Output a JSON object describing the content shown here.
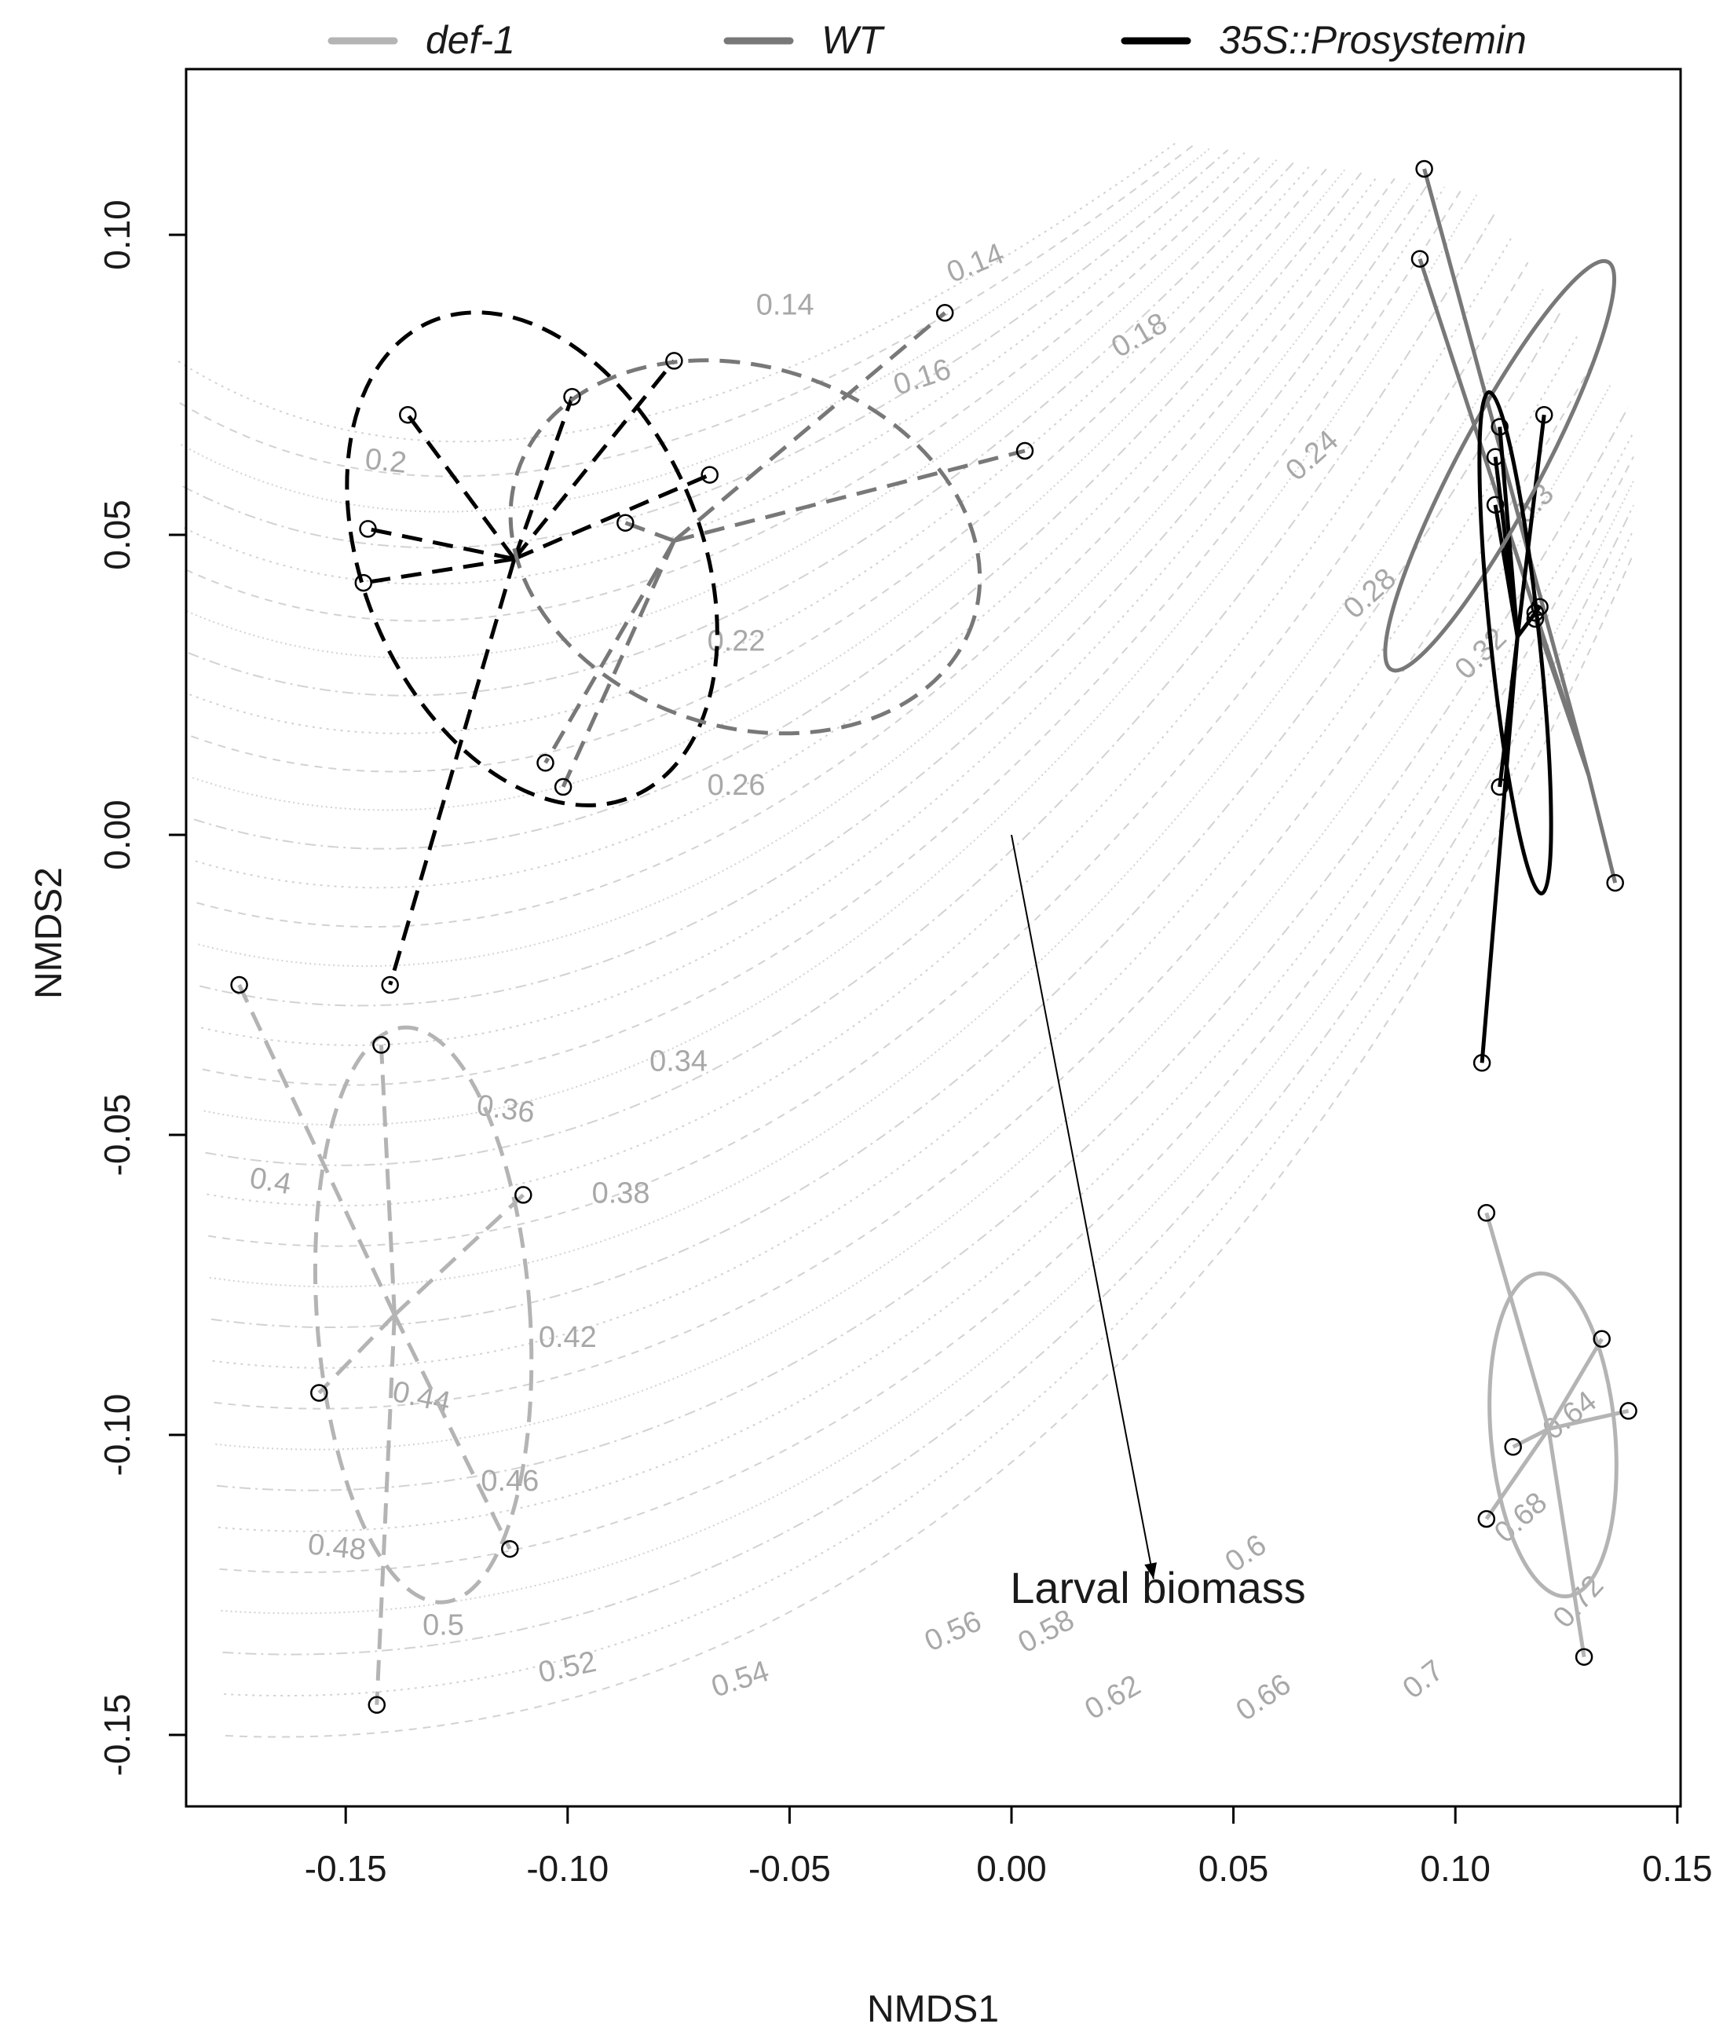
{
  "chart_data": {
    "type": "scatter",
    "title": "",
    "xlabel": "NMDS1",
    "ylabel": "NMDS2",
    "xlim": [
      -0.185,
      0.15
    ],
    "ylim": [
      -0.162,
      0.128
    ],
    "x_ticks": [
      "-0.15",
      "-0.10",
      "-0.05",
      "0.00",
      "0.05",
      "0.10",
      "0.15"
    ],
    "x_tick_values": [
      -0.15,
      -0.1,
      -0.05,
      0.0,
      0.05,
      0.1,
      0.15
    ],
    "y_ticks": [
      "-0.15",
      "-0.10",
      "-0.05",
      "0.00",
      "0.05",
      "0.10"
    ],
    "y_tick_values": [
      -0.15,
      -0.1,
      -0.05,
      0.0,
      0.05,
      0.1
    ],
    "grid": false,
    "legend_position": "top",
    "legend": [
      {
        "name": "def-1",
        "color": "#b4b4b4"
      },
      {
        "name": "WT",
        "color": "#787878"
      },
      {
        "name": "35S::Prosystemin",
        "color": "#000000"
      }
    ],
    "groups": [
      {
        "series": "35S::Prosystemin",
        "color": "#000000",
        "dash": true,
        "centroid": [
          -0.112,
          0.046
        ],
        "points": [
          [
            -0.136,
            0.07
          ],
          [
            -0.145,
            0.051
          ],
          [
            -0.146,
            0.042
          ],
          [
            -0.099,
            0.073
          ],
          [
            -0.076,
            0.079
          ],
          [
            -0.068,
            0.06
          ],
          [
            -0.14,
            -0.025
          ]
        ],
        "ellipse": {
          "cx": -0.108,
          "cy": 0.046,
          "rx": 0.038,
          "ry": 0.043,
          "angle_deg": 23
        }
      },
      {
        "series": "WT",
        "color": "#787878",
        "dash": true,
        "centroid": [
          -0.076,
          0.049
        ],
        "points": [
          [
            -0.015,
            0.087
          ],
          [
            0.003,
            0.064
          ],
          [
            -0.087,
            0.052
          ],
          [
            -0.105,
            0.012
          ],
          [
            -0.101,
            0.008
          ]
        ],
        "ellipse": {
          "cx": -0.06,
          "cy": 0.048,
          "rx": 0.054,
          "ry": 0.03,
          "angle_deg": -18
        }
      },
      {
        "series": "def-1",
        "color": "#b4b4b4",
        "dash": true,
        "centroid": [
          -0.139,
          -0.08
        ],
        "points": [
          [
            -0.174,
            -0.025
          ],
          [
            -0.142,
            -0.035
          ],
          [
            -0.11,
            -0.06
          ],
          [
            -0.156,
            -0.093
          ],
          [
            -0.113,
            -0.119
          ],
          [
            -0.143,
            -0.145
          ]
        ],
        "ellipse": {
          "cx": -0.1325,
          "cy": -0.08,
          "rx": 0.024,
          "ry": 0.048,
          "angle_deg": 4
        }
      },
      {
        "series": "WT",
        "color": "#787878",
        "dash": false,
        "centroid": [
          0.13,
          0.01
        ],
        "points": [
          [
            0.093,
            0.111
          ],
          [
            0.092,
            0.096
          ],
          [
            0.118,
            0.037
          ],
          [
            0.118,
            0.036
          ],
          [
            0.136,
            -0.008
          ]
        ],
        "ellipse": {
          "cx": 0.11,
          "cy": 0.0615,
          "rx": 0.052,
          "ry": 0.007,
          "angle_deg": 62
        }
      },
      {
        "series": "35S::Prosystemin",
        "color": "#000000",
        "dash": false,
        "centroid": [
          0.114,
          0.033
        ],
        "points": [
          [
            0.11,
            0.068
          ],
          [
            0.109,
            0.063
          ],
          [
            0.12,
            0.07
          ],
          [
            0.109,
            0.055
          ],
          [
            0.119,
            0.038
          ],
          [
            0.11,
            0.008
          ],
          [
            0.106,
            -0.038
          ]
        ],
        "ellipse": {
          "cx": 0.1135,
          "cy": 0.032,
          "rx": 0.0055,
          "ry": 0.042,
          "angle_deg": 6
        }
      },
      {
        "series": "def-1",
        "color": "#b4b4b4",
        "dash": false,
        "centroid": [
          0.121,
          -0.099
        ],
        "points": [
          [
            0.107,
            -0.063
          ],
          [
            0.133,
            -0.084
          ],
          [
            0.139,
            -0.096
          ],
          [
            0.113,
            -0.102
          ],
          [
            0.107,
            -0.114
          ],
          [
            0.129,
            -0.137
          ]
        ],
        "ellipse": {
          "cx": 0.122,
          "cy": -0.1,
          "rx": 0.014,
          "ry": 0.027,
          "angle_deg": 5
        }
      }
    ],
    "contour_labels": [
      {
        "text": "0.14",
        "x": -0.051,
        "y": 0.088,
        "angle": 0
      },
      {
        "text": "0.14",
        "x": -0.008,
        "y": 0.095,
        "angle": -22
      },
      {
        "text": "0.16",
        "x": -0.02,
        "y": 0.076,
        "angle": -18
      },
      {
        "text": "0.18",
        "x": 0.029,
        "y": 0.083,
        "angle": -30
      },
      {
        "text": "0.2",
        "x": -0.141,
        "y": 0.062,
        "angle": 6
      },
      {
        "text": "0.22",
        "x": -0.062,
        "y": 0.032,
        "angle": 0
      },
      {
        "text": "0.24",
        "x": 0.068,
        "y": 0.063,
        "angle": -42
      },
      {
        "text": "0.26",
        "x": -0.062,
        "y": 0.008,
        "angle": 0
      },
      {
        "text": "0.28",
        "x": 0.081,
        "y": 0.04,
        "angle": -42
      },
      {
        "text": "0.3",
        "x": 0.118,
        "y": 0.055,
        "angle": -45
      },
      {
        "text": "0.32",
        "x": 0.106,
        "y": 0.03,
        "angle": -45
      },
      {
        "text": "0.34",
        "x": -0.075,
        "y": -0.038,
        "angle": 0
      },
      {
        "text": "0.36",
        "x": -0.114,
        "y": -0.046,
        "angle": 8
      },
      {
        "text": "0.38",
        "x": -0.088,
        "y": -0.06,
        "angle": 0
      },
      {
        "text": "0.4",
        "x": -0.167,
        "y": -0.058,
        "angle": 10
      },
      {
        "text": "0.42",
        "x": -0.1,
        "y": -0.084,
        "angle": 0
      },
      {
        "text": "0.44",
        "x": -0.133,
        "y": -0.094,
        "angle": 12
      },
      {
        "text": "0.46",
        "x": -0.113,
        "y": -0.108,
        "angle": 0
      },
      {
        "text": "0.48",
        "x": -0.152,
        "y": -0.119,
        "angle": 6
      },
      {
        "text": "0.5",
        "x": -0.128,
        "y": -0.132,
        "angle": 0
      },
      {
        "text": "0.52",
        "x": -0.1,
        "y": -0.139,
        "angle": -12
      },
      {
        "text": "0.54",
        "x": -0.061,
        "y": -0.141,
        "angle": -18
      },
      {
        "text": "0.56",
        "x": -0.013,
        "y": -0.133,
        "angle": -24
      },
      {
        "text": "0.58",
        "x": 0.008,
        "y": -0.133,
        "angle": -28
      },
      {
        "text": "0.6",
        "x": 0.053,
        "y": -0.12,
        "angle": -34
      },
      {
        "text": "0.62",
        "x": 0.023,
        "y": -0.144,
        "angle": -30
      },
      {
        "text": "0.64",
        "x": 0.126,
        "y": -0.097,
        "angle": -38
      },
      {
        "text": "0.66",
        "x": 0.057,
        "y": -0.144,
        "angle": -34
      },
      {
        "text": "0.68",
        "x": 0.115,
        "y": -0.114,
        "angle": -42
      },
      {
        "text": "0.7",
        "x": 0.093,
        "y": -0.141,
        "angle": -38
      },
      {
        "text": "0.72",
        "x": 0.128,
        "y": -0.128,
        "angle": -48
      }
    ],
    "vector": {
      "label": "Larval biomass",
      "from": [
        0.0,
        0.0
      ],
      "to": [
        0.032,
        -0.124
      ],
      "label_at": [
        0.033,
        -0.128
      ]
    }
  }
}
